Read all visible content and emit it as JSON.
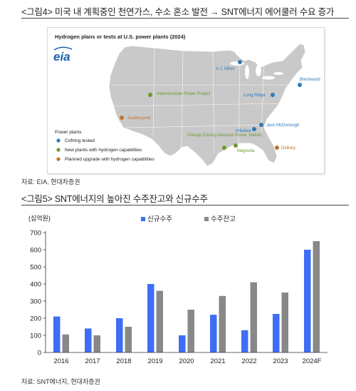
{
  "figure4": {
    "title": "<그림4> 미국 내 계획중인 천연가스, 수소 혼소 발전 → SNT에너지 에어쿨러 수요 증가",
    "map_title": "Hydrogen plans or tests at U.S. power plants (2024)",
    "logo_text": "eia",
    "legend_title": "Power plants",
    "legend": [
      {
        "label": "Cofiring tested",
        "color": "#2f7ab9"
      },
      {
        "label": "New plants with hydrogen capabilities",
        "color": "#6d9a2e"
      },
      {
        "label": "Planned upgrade with hydrogen capabilities",
        "color": "#c0722f"
      }
    ],
    "plants": [
      {
        "name": "A.J. Mihm",
        "category": 0
      },
      {
        "name": "Brentwood",
        "category": 0
      },
      {
        "name": "Long Ridge",
        "category": 0
      },
      {
        "name": "Intermountain Power Project",
        "category": 1
      },
      {
        "name": "Scattergood",
        "category": 2
      },
      {
        "name": "Jack McDonough",
        "category": 0
      },
      {
        "name": "Hillabee",
        "category": 0
      },
      {
        "name": "Orange County Advance Power Station",
        "category": 1
      },
      {
        "name": "Magnolia",
        "category": 1
      },
      {
        "name": "DeBary",
        "category": 2
      }
    ],
    "source": "자료: EIA, 현대차증권"
  },
  "figure5": {
    "title": "<그림5> SNT에너지의 높아진 수주잔고와 신규수주",
    "source": "자료: SNT에너지, 현대차증권"
  },
  "chart_data": {
    "type": "bar",
    "title": "",
    "unit_label": "(십억원)",
    "xlabel": "",
    "ylabel": "",
    "categories": [
      "2016",
      "2017",
      "2018",
      "2019",
      "2020",
      "2021",
      "2022",
      "2023",
      "2024F"
    ],
    "series": [
      {
        "name": "신규수주",
        "color": "#3d6ef5",
        "values": [
          210,
          140,
          200,
          400,
          100,
          220,
          130,
          225,
          600
        ]
      },
      {
        "name": "수주잔고",
        "color": "#888888",
        "values": [
          105,
          100,
          150,
          360,
          250,
          330,
          410,
          350,
          650
        ]
      }
    ],
    "ylim": [
      0,
      700
    ],
    "yticks": [
      0,
      100,
      200,
      300,
      400,
      500,
      600,
      700
    ],
    "grid": false,
    "legend": "top-center"
  }
}
